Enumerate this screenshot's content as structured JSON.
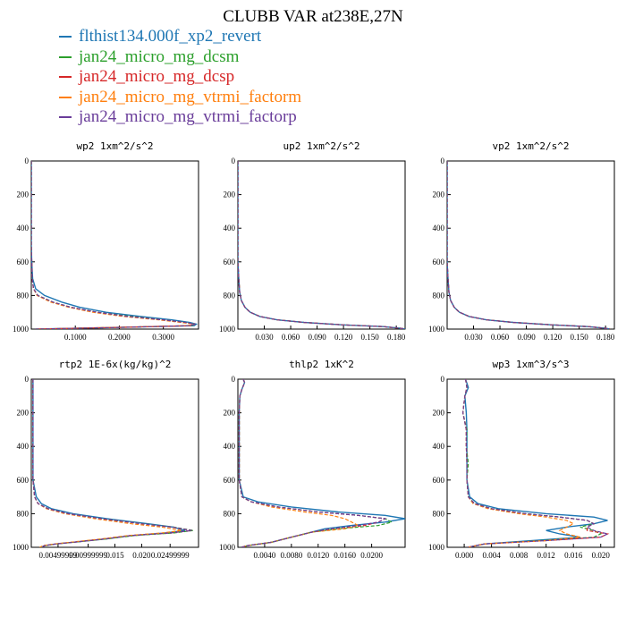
{
  "title": "CLUBB VAR at238E,27N",
  "legend": [
    {
      "label": "flthist134.000f_xp2_revert",
      "color": "#1f77b4"
    },
    {
      "label": "jan24_micro_mg_dcsm",
      "color": "#2ca02c"
    },
    {
      "label": "jan24_micro_mg_dcsp",
      "color": "#d62728"
    },
    {
      "label": "jan24_micro_mg_vtrmi_factorm",
      "color": "#ff7f0e"
    },
    {
      "label": "jan24_micro_mg_vtrmi_factorp",
      "color": "#6a3d9a"
    }
  ],
  "chart_data": [
    {
      "type": "line",
      "title": "wp2   1xm^2/s^2",
      "ylim": [
        1000,
        0
      ],
      "yticks": [
        "0",
        "200",
        "400",
        "600",
        "800",
        "1000"
      ],
      "xlim": [
        0,
        0.38
      ],
      "xticks": [
        {
          "v": 0.1,
          "label": "0.1000"
        },
        {
          "v": 0.2,
          "label": "0.2000"
        },
        {
          "v": 0.3,
          "label": "0.3000"
        }
      ],
      "y": [
        0,
        100,
        200,
        300,
        400,
        500,
        600,
        700,
        760,
        800,
        840,
        870,
        900,
        925,
        945,
        960,
        970,
        980,
        990,
        1000
      ],
      "series": [
        {
          "values": [
            0,
            0,
            0,
            0,
            0,
            0,
            0.001,
            0.003,
            0.01,
            0.03,
            0.07,
            0.11,
            0.17,
            0.25,
            0.32,
            0.36,
            0.375,
            0.37,
            0.2,
            0.01
          ]
        },
        {
          "values": [
            0,
            0,
            0,
            0,
            0,
            0,
            0.001,
            0.002,
            0.005,
            0.015,
            0.05,
            0.09,
            0.15,
            0.23,
            0.3,
            0.35,
            0.37,
            0.365,
            0.2,
            0.01
          ]
        },
        {
          "values": [
            0,
            0,
            0,
            0,
            0,
            0,
            0.001,
            0.002,
            0.005,
            0.014,
            0.048,
            0.09,
            0.15,
            0.22,
            0.3,
            0.345,
            0.372,
            0.36,
            0.2,
            0.01
          ]
        },
        {
          "values": [
            0,
            0,
            0,
            0,
            0,
            0,
            0.001,
            0.002,
            0.005,
            0.013,
            0.045,
            0.085,
            0.14,
            0.21,
            0.29,
            0.34,
            0.37,
            0.355,
            0.18,
            0.01
          ]
        },
        {
          "values": [
            0,
            0,
            0,
            0,
            0,
            0,
            0.001,
            0.002,
            0.005,
            0.015,
            0.05,
            0.09,
            0.15,
            0.22,
            0.3,
            0.35,
            0.37,
            0.36,
            0.2,
            0.01
          ]
        }
      ]
    },
    {
      "type": "line",
      "title": "up2   1xm^2/s^2",
      "ylim": [
        1000,
        0
      ],
      "yticks": [
        "0",
        "200",
        "400",
        "600",
        "800",
        "1000"
      ],
      "xlim": [
        0,
        0.19
      ],
      "xticks": [
        {
          "v": 0.03,
          "label": "0.030"
        },
        {
          "v": 0.06,
          "label": "0.060"
        },
        {
          "v": 0.09,
          "label": "0.090"
        },
        {
          "v": 0.12,
          "label": "0.120"
        },
        {
          "v": 0.15,
          "label": "0.150"
        },
        {
          "v": 0.18,
          "label": "0.180"
        }
      ],
      "y": [
        0,
        200,
        400,
        600,
        700,
        780,
        830,
        870,
        900,
        925,
        945,
        960,
        975,
        985,
        995,
        1000
      ],
      "series": [
        {
          "values": [
            0,
            0,
            0,
            0,
            0.001,
            0.002,
            0.004,
            0.008,
            0.014,
            0.025,
            0.045,
            0.075,
            0.12,
            0.165,
            0.185,
            0.19
          ]
        },
        {
          "values": [
            0,
            0,
            0,
            0,
            0.001,
            0.002,
            0.004,
            0.008,
            0.014,
            0.025,
            0.045,
            0.075,
            0.12,
            0.165,
            0.185,
            0.19
          ]
        },
        {
          "values": [
            0,
            0,
            0,
            0,
            0.001,
            0.002,
            0.004,
            0.008,
            0.014,
            0.025,
            0.045,
            0.075,
            0.12,
            0.165,
            0.185,
            0.19
          ]
        },
        {
          "values": [
            0,
            0,
            0,
            0,
            0.001,
            0.002,
            0.004,
            0.008,
            0.014,
            0.025,
            0.045,
            0.075,
            0.12,
            0.165,
            0.185,
            0.19
          ]
        },
        {
          "values": [
            0,
            0,
            0,
            0,
            0.001,
            0.002,
            0.004,
            0.008,
            0.014,
            0.025,
            0.045,
            0.075,
            0.12,
            0.165,
            0.185,
            0.19
          ]
        }
      ]
    },
    {
      "type": "line",
      "title": "vp2   1xm^2/s^2",
      "ylim": [
        1000,
        0
      ],
      "yticks": [
        "0",
        "200",
        "400",
        "600",
        "800",
        "1000"
      ],
      "xlim": [
        0,
        0.19
      ],
      "xticks": [
        {
          "v": 0.03,
          "label": "0.030"
        },
        {
          "v": 0.06,
          "label": "0.060"
        },
        {
          "v": 0.09,
          "label": "0.090"
        },
        {
          "v": 0.12,
          "label": "0.120"
        },
        {
          "v": 0.15,
          "label": "0.150"
        },
        {
          "v": 0.18,
          "label": "0.180"
        }
      ],
      "y": [
        0,
        200,
        400,
        600,
        700,
        780,
        830,
        870,
        900,
        925,
        945,
        960,
        975,
        985,
        995,
        1000
      ],
      "series": [
        {
          "values": [
            0,
            0,
            0,
            0,
            0.001,
            0.002,
            0.004,
            0.008,
            0.014,
            0.025,
            0.045,
            0.075,
            0.12,
            0.16,
            0.18,
            0.185
          ]
        },
        {
          "values": [
            0,
            0,
            0,
            0,
            0.001,
            0.002,
            0.004,
            0.008,
            0.014,
            0.025,
            0.045,
            0.075,
            0.12,
            0.16,
            0.18,
            0.185
          ]
        },
        {
          "values": [
            0,
            0,
            0,
            0,
            0.001,
            0.002,
            0.004,
            0.008,
            0.014,
            0.025,
            0.045,
            0.075,
            0.12,
            0.16,
            0.18,
            0.185
          ]
        },
        {
          "values": [
            0,
            0,
            0,
            0,
            0.001,
            0.002,
            0.004,
            0.008,
            0.014,
            0.025,
            0.045,
            0.075,
            0.12,
            0.16,
            0.18,
            0.185
          ]
        },
        {
          "values": [
            0,
            0,
            0,
            0,
            0.001,
            0.002,
            0.004,
            0.008,
            0.014,
            0.025,
            0.045,
            0.075,
            0.12,
            0.16,
            0.18,
            0.185
          ]
        }
      ]
    },
    {
      "type": "line",
      "title": "rtp2   1E-6x(kg/kg)^2",
      "ylim": [
        1000,
        0
      ],
      "yticks": [
        "0",
        "200",
        "400",
        "600",
        "800",
        "1000"
      ],
      "xlim": [
        0,
        1
      ],
      "xticks": [
        {
          "v": 0.16,
          "label": "0.00499999"
        },
        {
          "v": 0.34,
          "label": "0.00999999"
        },
        {
          "v": 0.5,
          "label": "0.015"
        },
        {
          "v": 0.66,
          "label": "0.020"
        },
        {
          "v": 0.83,
          "label": "0.02499999"
        }
      ],
      "y": [
        0,
        200,
        400,
        600,
        700,
        740,
        770,
        800,
        830,
        860,
        880,
        900,
        915,
        930,
        950,
        965,
        980,
        990,
        1000
      ],
      "series": [
        {
          "values": [
            0.01,
            0.01,
            0.01,
            0.01,
            0.03,
            0.06,
            0.12,
            0.25,
            0.45,
            0.7,
            0.85,
            0.92,
            0.8,
            0.6,
            0.45,
            0.3,
            0.15,
            0.08,
            0.06
          ]
        },
        {
          "values": [
            0.01,
            0.01,
            0.01,
            0.01,
            0.02,
            0.04,
            0.1,
            0.22,
            0.42,
            0.67,
            0.85,
            0.97,
            0.85,
            0.62,
            0.45,
            0.3,
            0.15,
            0.08,
            0.06
          ]
        },
        {
          "values": [
            0.01,
            0.01,
            0.01,
            0.01,
            0.02,
            0.04,
            0.1,
            0.22,
            0.42,
            0.66,
            0.84,
            0.96,
            0.83,
            0.6,
            0.44,
            0.3,
            0.15,
            0.08,
            0.06
          ]
        },
        {
          "values": [
            0.01,
            0.01,
            0.01,
            0.01,
            0.02,
            0.04,
            0.09,
            0.2,
            0.38,
            0.6,
            0.78,
            0.9,
            0.78,
            0.58,
            0.42,
            0.28,
            0.14,
            0.07,
            0.05
          ]
        },
        {
          "values": [
            0.01,
            0.01,
            0.01,
            0.01,
            0.02,
            0.04,
            0.1,
            0.22,
            0.42,
            0.66,
            0.84,
            0.96,
            0.83,
            0.6,
            0.44,
            0.3,
            0.15,
            0.08,
            0.06
          ]
        }
      ]
    },
    {
      "type": "line",
      "title": "thlp2   1xK^2",
      "ylim": [
        1000,
        0
      ],
      "yticks": [
        "0",
        "200",
        "400",
        "600",
        "800",
        "1000"
      ],
      "xlim": [
        0,
        0.025
      ],
      "xticks": [
        {
          "v": 0.004,
          "label": "0.0040"
        },
        {
          "v": 0.008,
          "label": "0.0080"
        },
        {
          "v": 0.012,
          "label": "0.0120"
        },
        {
          "v": 0.016,
          "label": "0.0160"
        },
        {
          "v": 0.02,
          "label": "0.0200"
        }
      ],
      "y": [
        0,
        20,
        60,
        100,
        200,
        400,
        600,
        700,
        730,
        760,
        790,
        810,
        830,
        850,
        870,
        890,
        910,
        940,
        970,
        990,
        1000
      ],
      "series": [
        {
          "values": [
            0.0008,
            0.001,
            0.0006,
            0.0003,
            0.0002,
            0.0002,
            0.0002,
            0.0008,
            0.003,
            0.008,
            0.015,
            0.022,
            0.025,
            0.022,
            0.017,
            0.013,
            0.011,
            0.008,
            0.005,
            0.0015,
            0.0005
          ]
        },
        {
          "values": [
            0.0008,
            0.001,
            0.0006,
            0.0003,
            0.0002,
            0.0002,
            0.0002,
            0.0006,
            0.002,
            0.006,
            0.012,
            0.018,
            0.022,
            0.023,
            0.021,
            0.015,
            0.011,
            0.008,
            0.005,
            0.0015,
            0.0005
          ]
        },
        {
          "values": [
            0.0008,
            0.001,
            0.0006,
            0.0003,
            0.0002,
            0.0002,
            0.0002,
            0.0006,
            0.002,
            0.006,
            0.012,
            0.018,
            0.022,
            0.021,
            0.019,
            0.014,
            0.011,
            0.008,
            0.005,
            0.0015,
            0.0005
          ]
        },
        {
          "values": [
            0.0008,
            0.001,
            0.0006,
            0.0003,
            0.0002,
            0.0002,
            0.0002,
            0.0006,
            0.002,
            0.005,
            0.01,
            0.014,
            0.016,
            0.017,
            0.018,
            0.016,
            0.011,
            0.008,
            0.005,
            0.0015,
            0.0005
          ]
        },
        {
          "values": [
            0.0008,
            0.001,
            0.0006,
            0.0003,
            0.0002,
            0.0002,
            0.0002,
            0.0006,
            0.002,
            0.006,
            0.012,
            0.018,
            0.022,
            0.021,
            0.018,
            0.014,
            0.011,
            0.008,
            0.005,
            0.0015,
            0.0005
          ]
        }
      ]
    },
    {
      "type": "line",
      "title": "wp3   1xm^3/s^3",
      "ylim": [
        1000,
        0
      ],
      "yticks": [
        "0",
        "200",
        "400",
        "600",
        "800",
        "1000"
      ],
      "xlim": [
        -0.0025,
        0.022
      ],
      "xticks": [
        {
          "v": 0,
          "label": "0.000"
        },
        {
          "v": 0.004,
          "label": "0.004"
        },
        {
          "v": 0.008,
          "label": "0.008"
        },
        {
          "v": 0.012,
          "label": "0.012"
        },
        {
          "v": 0.016,
          "label": "0.016"
        },
        {
          "v": 0.02,
          "label": "0.020"
        }
      ],
      "y": [
        0,
        50,
        100,
        200,
        300,
        400,
        500,
        600,
        700,
        740,
        770,
        800,
        820,
        840,
        860,
        880,
        900,
        920,
        940,
        960,
        980,
        1000
      ],
      "series": [
        {
          "values": [
            0.0002,
            0.0006,
            0.0001,
            0.0003,
            0.0004,
            0.0004,
            0.0004,
            0.0004,
            0.0008,
            0.002,
            0.005,
            0.012,
            0.019,
            0.021,
            0.019,
            0.015,
            0.012,
            0.014,
            0.017,
            0.01,
            0.003,
            0.0005
          ]
        },
        {
          "values": [
            0.0002,
            0.0004,
            0.0001,
            -0.0002,
            0.0004,
            0.0003,
            0.0006,
            0.0004,
            0.0006,
            0.0015,
            0.004,
            0.009,
            0.014,
            0.018,
            0.019,
            0.017,
            0.019,
            0.02,
            0.019,
            0.011,
            0.003,
            0.0005
          ]
        },
        {
          "values": [
            0.0002,
            0.0004,
            0.0001,
            -0.0002,
            0.0003,
            0.0003,
            0.0004,
            0.0004,
            0.0006,
            0.0015,
            0.004,
            0.009,
            0.014,
            0.018,
            0.019,
            0.018,
            0.018,
            0.021,
            0.02,
            0.012,
            0.003,
            0.0005
          ]
        },
        {
          "values": [
            0.0002,
            0.0004,
            0.0001,
            -0.0002,
            0.0003,
            0.0003,
            0.0004,
            0.0004,
            0.0006,
            0.0013,
            0.0035,
            0.008,
            0.012,
            0.015,
            0.016,
            0.015,
            0.014,
            0.015,
            0.017,
            0.012,
            0.003,
            0.0005
          ]
        },
        {
          "values": [
            0.0002,
            0.0004,
            0.0001,
            -0.0002,
            0.0003,
            0.0003,
            0.0004,
            0.0004,
            0.0006,
            0.0015,
            0.004,
            0.009,
            0.014,
            0.018,
            0.019,
            0.018,
            0.019,
            0.021,
            0.02,
            0.012,
            0.003,
            0.0005
          ]
        }
      ]
    }
  ]
}
